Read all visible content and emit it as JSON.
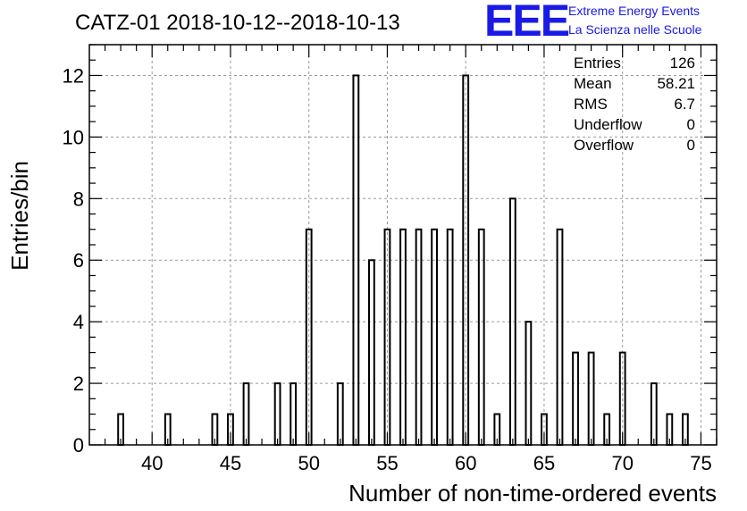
{
  "title": "CATZ-01 2018-10-12--2018-10-13",
  "logo": {
    "letters": "EEE",
    "line1": "Extreme Energy Events",
    "line2": "La Scienza nelle Scuole",
    "color": "#1a1ae6"
  },
  "stats_box": {
    "rows": [
      {
        "label": "Entries",
        "value": "126"
      },
      {
        "label": "Mean",
        "value": "58.21"
      },
      {
        "label": "RMS",
        "value": "6.7"
      },
      {
        "label": "Underflow",
        "value": "0"
      },
      {
        "label": "Overflow",
        "value": "0"
      }
    ]
  },
  "chart_data": {
    "type": "bar",
    "subtype": "histogram",
    "title": "CATZ-01 2018-10-12--2018-10-13",
    "xlabel": "Number of non-time-ordered events",
    "ylabel": "Entries/bin",
    "xlim": [
      36,
      76
    ],
    "ylim": [
      0,
      13
    ],
    "xticks": [
      40,
      45,
      50,
      55,
      60,
      65,
      70,
      75
    ],
    "yticks": [
      0,
      2,
      4,
      6,
      8,
      10,
      12
    ],
    "grid": true,
    "bin_width": 0.33,
    "bins": [
      {
        "x": 38,
        "y": 1
      },
      {
        "x": 41,
        "y": 1
      },
      {
        "x": 44,
        "y": 1
      },
      {
        "x": 45,
        "y": 1
      },
      {
        "x": 46,
        "y": 2
      },
      {
        "x": 48,
        "y": 2
      },
      {
        "x": 49,
        "y": 2
      },
      {
        "x": 50,
        "y": 7
      },
      {
        "x": 52,
        "y": 2
      },
      {
        "x": 53,
        "y": 12
      },
      {
        "x": 54,
        "y": 6
      },
      {
        "x": 55,
        "y": 7
      },
      {
        "x": 56,
        "y": 7
      },
      {
        "x": 57,
        "y": 7
      },
      {
        "x": 58,
        "y": 7
      },
      {
        "x": 59,
        "y": 7
      },
      {
        "x": 60,
        "y": 12
      },
      {
        "x": 61,
        "y": 7
      },
      {
        "x": 62,
        "y": 1
      },
      {
        "x": 63,
        "y": 8
      },
      {
        "x": 64,
        "y": 4
      },
      {
        "x": 65,
        "y": 1
      },
      {
        "x": 66,
        "y": 7
      },
      {
        "x": 67,
        "y": 3
      },
      {
        "x": 68,
        "y": 3
      },
      {
        "x": 69,
        "y": 1
      },
      {
        "x": 70,
        "y": 3
      },
      {
        "x": 72,
        "y": 2
      },
      {
        "x": 73,
        "y": 1
      },
      {
        "x": 74,
        "y": 1
      }
    ]
  }
}
